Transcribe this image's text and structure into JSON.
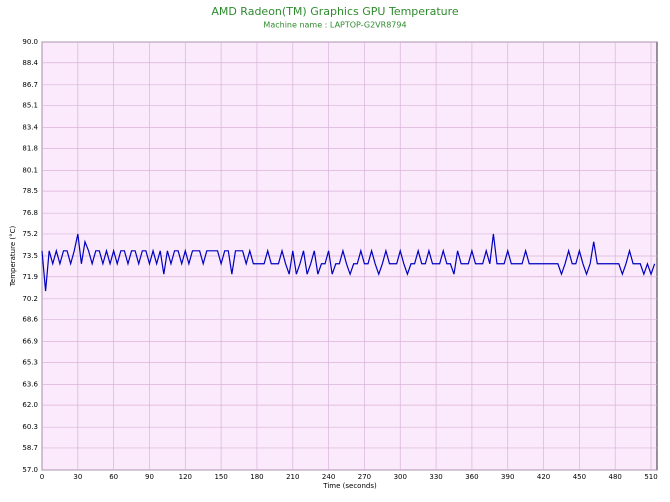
{
  "chart_data": {
    "type": "line",
    "title": "AMD Radeon(TM) Graphics GPU Temperature",
    "subtitle": "Machine name : LAPTOP-G2VR8794",
    "x_label": "Time (seconds)",
    "y_label": "Temperature (°C)",
    "xlim": [
      0,
      515
    ],
    "xticks": [
      0,
      30,
      60,
      90,
      120,
      150,
      180,
      210,
      240,
      270,
      300,
      330,
      360,
      390,
      420,
      450,
      480,
      510
    ],
    "ylim": [
      57,
      90
    ],
    "yticks": [
      {
        "value": 57,
        "label": "57.0"
      },
      58.7,
      60.3,
      {
        "value": 62,
        "label": "62.0"
      },
      63.6,
      65.3,
      66.9,
      68.6,
      70.2,
      71.9,
      73.5,
      75.2,
      76.8,
      78.5,
      80.1,
      81.8,
      83.4,
      85.1,
      86.7,
      88.4,
      {
        "value": 90,
        "label": "90.0"
      }
    ],
    "grid": true,
    "x": [
      0,
      3,
      6,
      9,
      12,
      15,
      18,
      21,
      24,
      27,
      30,
      33,
      36,
      39,
      42,
      45,
      48,
      51,
      54,
      57,
      60,
      63,
      66,
      69,
      72,
      75,
      78,
      81,
      84,
      87,
      90,
      93,
      96,
      99,
      102,
      105,
      108,
      111,
      114,
      117,
      120,
      123,
      126,
      129,
      132,
      135,
      138,
      141,
      144,
      147,
      150,
      153,
      156,
      159,
      162,
      165,
      168,
      171,
      174,
      177,
      180,
      183,
      186,
      189,
      192,
      195,
      198,
      201,
      204,
      207,
      210,
      213,
      216,
      219,
      222,
      225,
      228,
      231,
      234,
      237,
      240,
      243,
      246,
      249,
      252,
      255,
      258,
      261,
      264,
      267,
      270,
      273,
      276,
      279,
      282,
      285,
      288,
      291,
      294,
      297,
      300,
      303,
      306,
      309,
      312,
      315,
      318,
      321,
      324,
      327,
      330,
      333,
      336,
      339,
      342,
      345,
      348,
      351,
      354,
      357,
      360,
      363,
      366,
      369,
      372,
      375,
      378,
      381,
      384,
      387,
      390,
      393,
      396,
      399,
      402,
      405,
      408,
      411,
      414,
      417,
      420,
      423,
      426,
      429,
      432,
      435,
      438,
      441,
      444,
      447,
      450,
      453,
      456,
      459,
      462,
      465,
      468,
      471,
      474,
      477,
      480,
      483,
      486,
      489,
      492,
      495,
      498,
      501,
      504,
      507,
      510,
      513
    ],
    "series": [
      {
        "name": "GPU Temperature",
        "color": "#0000c0",
        "values": [
          73.9,
          70.8,
          73.9,
          72.9,
          73.9,
          72.9,
          73.9,
          73.9,
          72.9,
          73.9,
          75.2,
          72.9,
          74.6,
          73.9,
          72.9,
          73.9,
          73.9,
          72.9,
          73.9,
          72.9,
          73.9,
          72.9,
          73.9,
          73.9,
          72.9,
          73.9,
          73.9,
          72.9,
          73.9,
          73.9,
          72.9,
          73.9,
          72.9,
          73.9,
          72.1,
          73.9,
          72.9,
          73.9,
          73.9,
          72.9,
          73.9,
          72.9,
          73.9,
          73.9,
          73.9,
          72.9,
          73.9,
          73.9,
          73.9,
          73.9,
          72.9,
          73.9,
          73.9,
          72.1,
          73.9,
          73.9,
          73.9,
          72.9,
          73.9,
          72.9,
          72.9,
          72.9,
          72.9,
          73.9,
          72.9,
          72.9,
          72.9,
          73.9,
          72.9,
          72.1,
          73.9,
          72.1,
          72.9,
          73.9,
          72.1,
          72.9,
          73.9,
          72.1,
          72.9,
          72.9,
          73.9,
          72.1,
          72.9,
          72.9,
          73.9,
          72.9,
          72.1,
          72.9,
          72.9,
          73.9,
          72.9,
          72.9,
          73.9,
          72.9,
          72.1,
          72.9,
          73.9,
          72.9,
          72.9,
          72.9,
          73.9,
          72.9,
          72.1,
          72.9,
          72.9,
          73.9,
          72.9,
          72.9,
          73.9,
          72.9,
          72.9,
          72.9,
          73.9,
          72.9,
          72.9,
          72.1,
          73.9,
          72.9,
          72.9,
          72.9,
          73.9,
          72.9,
          72.9,
          72.9,
          73.9,
          72.9,
          75.2,
          72.9,
          72.9,
          72.9,
          73.9,
          72.9,
          72.9,
          72.9,
          72.9,
          73.9,
          72.9,
          72.9,
          72.9,
          72.9,
          72.9,
          72.9,
          72.9,
          72.9,
          72.9,
          72.1,
          72.9,
          73.9,
          72.9,
          72.9,
          73.9,
          72.9,
          72.1,
          72.9,
          74.6,
          72.9,
          72.9,
          72.9,
          72.9,
          72.9,
          72.9,
          72.9,
          72.1,
          72.9,
          73.9,
          72.9,
          72.9,
          72.9,
          72.1,
          72.9,
          72.1,
          72.9
        ]
      }
    ]
  }
}
